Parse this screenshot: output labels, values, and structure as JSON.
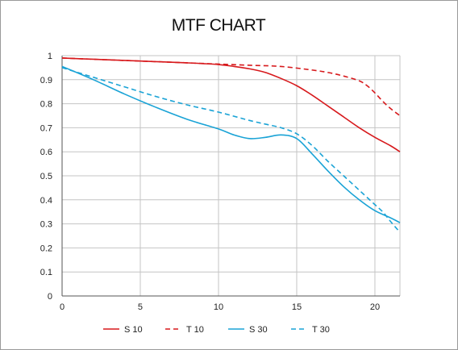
{
  "chart_data": {
    "type": "line",
    "title": "MTF CHART",
    "xlabel": "",
    "ylabel": "",
    "xlim": [
      0,
      21.6
    ],
    "ylim": [
      0,
      1
    ],
    "xticks": [
      0,
      5,
      10,
      15,
      20
    ],
    "yticks": [
      0,
      0.1,
      0.2,
      0.3,
      0.4,
      0.5,
      0.6,
      0.7,
      0.8,
      0.9,
      1
    ],
    "grid": true,
    "legend_position": "bottom",
    "series": [
      {
        "name": "S 10",
        "color": "#d7191c",
        "dash": "solid",
        "x": [
          0,
          2,
          4,
          6,
          8,
          10,
          11,
          12,
          13,
          14,
          15,
          16,
          17,
          18,
          19,
          20,
          21,
          21.6
        ],
        "y": [
          0.99,
          0.985,
          0.98,
          0.975,
          0.97,
          0.963,
          0.955,
          0.945,
          0.93,
          0.905,
          0.875,
          0.835,
          0.79,
          0.745,
          0.7,
          0.66,
          0.625,
          0.6
        ]
      },
      {
        "name": "T 10",
        "color": "#d7191c",
        "dash": "dashed",
        "x": [
          0,
          2,
          4,
          6,
          8,
          10,
          12,
          14,
          16,
          17,
          18,
          19,
          19.5,
          20,
          20.5,
          21,
          21.6
        ],
        "y": [
          0.99,
          0.985,
          0.98,
          0.975,
          0.97,
          0.965,
          0.96,
          0.955,
          0.94,
          0.93,
          0.915,
          0.895,
          0.875,
          0.845,
          0.81,
          0.78,
          0.75
        ]
      },
      {
        "name": "S 30",
        "color": "#1aa3d6",
        "dash": "solid",
        "x": [
          0,
          2,
          4,
          6,
          8,
          10,
          11,
          12,
          13,
          14,
          15,
          16,
          17,
          18,
          19,
          20,
          21,
          21.6
        ],
        "y": [
          0.955,
          0.9,
          0.84,
          0.785,
          0.735,
          0.695,
          0.67,
          0.655,
          0.66,
          0.67,
          0.655,
          0.59,
          0.52,
          0.455,
          0.4,
          0.355,
          0.325,
          0.305
        ]
      },
      {
        "name": "T 30",
        "color": "#1aa3d6",
        "dash": "dashed",
        "x": [
          0,
          2,
          4,
          6,
          8,
          10,
          12,
          13,
          14,
          15,
          16,
          17,
          18,
          19,
          20,
          20.5,
          21,
          21.6
        ],
        "y": [
          0.95,
          0.91,
          0.87,
          0.83,
          0.795,
          0.765,
          0.73,
          0.715,
          0.7,
          0.675,
          0.625,
          0.56,
          0.5,
          0.44,
          0.38,
          0.35,
          0.31,
          0.265
        ]
      }
    ]
  }
}
